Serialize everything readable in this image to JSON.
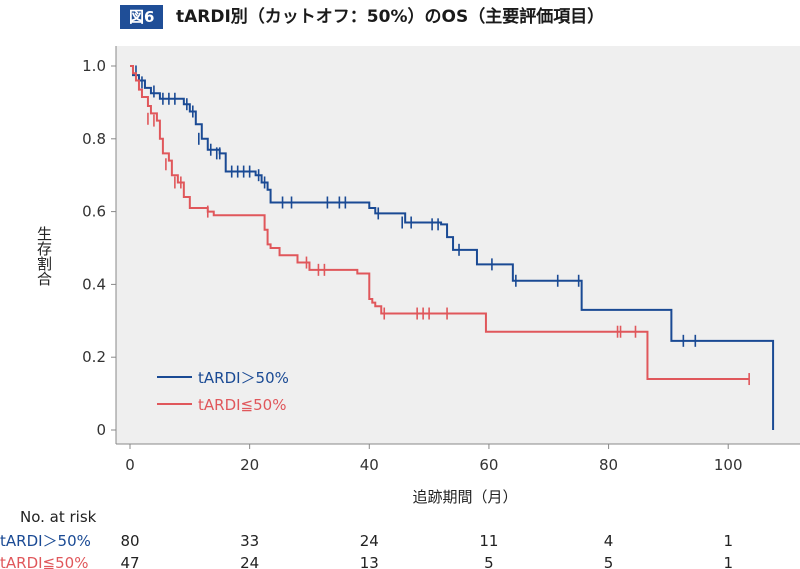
{
  "figure": {
    "badge": "図6",
    "title": "tARDI別（カットオフ：50%）のOS（主要評価項目）"
  },
  "colors": {
    "high": "#1a4a94",
    "low": "#e0575b",
    "plot_bg": "#efefef",
    "badge_bg": "#1f4e97"
  },
  "chart_data": {
    "type": "line",
    "subtype": "kaplan-meier-step",
    "xlabel": "追跡期間（月）",
    "ylabel": "生存割合",
    "xlim": [
      0,
      112
    ],
    "ylim": [
      0,
      1.0
    ],
    "x_ticks": [
      0,
      20,
      40,
      60,
      80,
      100
    ],
    "y_ticks": [
      0,
      0.2,
      0.4,
      0.6,
      0.8,
      1.0
    ],
    "y_tick_labels": [
      "0",
      "0.2",
      "0.4",
      "0.6",
      "0.8",
      "1.0"
    ],
    "grid": false,
    "legend_position": "lower-left",
    "series": [
      {
        "name": "tARDI＞50%",
        "color": "#1a4a94",
        "steps": [
          [
            0,
            1.0
          ],
          [
            0.5,
            0.975
          ],
          [
            1.5,
            0.96
          ],
          [
            2.5,
            0.94
          ],
          [
            3.5,
            0.925
          ],
          [
            5,
            0.91
          ],
          [
            8,
            0.91
          ],
          [
            9,
            0.895
          ],
          [
            10,
            0.875
          ],
          [
            11,
            0.84
          ],
          [
            12,
            0.8
          ],
          [
            13,
            0.77
          ],
          [
            15,
            0.76
          ],
          [
            16,
            0.71
          ],
          [
            21,
            0.7
          ],
          [
            22,
            0.68
          ],
          [
            23,
            0.66
          ],
          [
            23.5,
            0.625
          ],
          [
            40,
            0.61
          ],
          [
            41,
            0.595
          ],
          [
            46,
            0.57
          ],
          [
            52,
            0.565
          ],
          [
            53,
            0.53
          ],
          [
            54,
            0.495
          ],
          [
            58,
            0.455
          ],
          [
            64,
            0.41
          ],
          [
            75.5,
            0.33
          ],
          [
            90.5,
            0.245
          ],
          [
            107.5,
            0.245
          ],
          [
            107.5,
            0.0
          ]
        ],
        "censored": [
          [
            1,
            0.985
          ],
          [
            2,
            0.955
          ],
          [
            4,
            0.93
          ],
          [
            5.5,
            0.91
          ],
          [
            6.5,
            0.91
          ],
          [
            7.5,
            0.91
          ],
          [
            9.5,
            0.895
          ],
          [
            10.5,
            0.875
          ],
          [
            11.5,
            0.8
          ],
          [
            13.5,
            0.77
          ],
          [
            14.5,
            0.76
          ],
          [
            15,
            0.76
          ],
          [
            17,
            0.71
          ],
          [
            18,
            0.71
          ],
          [
            19,
            0.71
          ],
          [
            20,
            0.71
          ],
          [
            21.5,
            0.7
          ],
          [
            22.5,
            0.68
          ],
          [
            25.5,
            0.625
          ],
          [
            27,
            0.625
          ],
          [
            33,
            0.625
          ],
          [
            35,
            0.625
          ],
          [
            36,
            0.625
          ],
          [
            41.5,
            0.595
          ],
          [
            45.5,
            0.57
          ],
          [
            47,
            0.57
          ],
          [
            50.5,
            0.565
          ],
          [
            51.5,
            0.565
          ],
          [
            55,
            0.495
          ],
          [
            60.5,
            0.455
          ],
          [
            64.5,
            0.41
          ],
          [
            71.5,
            0.41
          ],
          [
            75,
            0.41
          ],
          [
            92.5,
            0.245
          ],
          [
            94.5,
            0.245
          ]
        ]
      },
      {
        "name": "tARDI≦50%",
        "color": "#e0575b",
        "steps": [
          [
            0,
            1.0
          ],
          [
            0.5,
            0.98
          ],
          [
            1,
            0.96
          ],
          [
            1.5,
            0.935
          ],
          [
            2,
            0.915
          ],
          [
            3,
            0.89
          ],
          [
            3.5,
            0.87
          ],
          [
            4.5,
            0.85
          ],
          [
            5,
            0.8
          ],
          [
            5.5,
            0.76
          ],
          [
            6.5,
            0.74
          ],
          [
            7,
            0.7
          ],
          [
            8,
            0.68
          ],
          [
            9,
            0.64
          ],
          [
            10,
            0.61
          ],
          [
            13,
            0.6
          ],
          [
            14,
            0.59
          ],
          [
            22.5,
            0.55
          ],
          [
            23,
            0.51
          ],
          [
            23.5,
            0.5
          ],
          [
            25,
            0.48
          ],
          [
            28,
            0.46
          ],
          [
            30,
            0.44
          ],
          [
            38,
            0.43
          ],
          [
            40,
            0.36
          ],
          [
            40.5,
            0.35
          ],
          [
            41,
            0.34
          ],
          [
            42,
            0.32
          ],
          [
            59.5,
            0.27
          ],
          [
            86.5,
            0.14
          ],
          [
            103.5,
            0.14
          ]
        ],
        "censored": [
          [
            3,
            0.855
          ],
          [
            4,
            0.85
          ],
          [
            6,
            0.73
          ],
          [
            7.5,
            0.68
          ],
          [
            8.5,
            0.68
          ],
          [
            13,
            0.6
          ],
          [
            29.5,
            0.46
          ],
          [
            31.5,
            0.44
          ],
          [
            32.5,
            0.44
          ],
          [
            42.5,
            0.32
          ],
          [
            48,
            0.32
          ],
          [
            49,
            0.32
          ],
          [
            50,
            0.32
          ],
          [
            53,
            0.32
          ],
          [
            81.5,
            0.27
          ],
          [
            82,
            0.27
          ],
          [
            84.5,
            0.27
          ],
          [
            103.5,
            0.14
          ]
        ]
      }
    ],
    "risk_table": {
      "header": "No. at risk",
      "times": [
        0,
        20,
        40,
        60,
        80,
        100
      ],
      "rows": [
        {
          "label": "tARDI＞50%",
          "color": "#1a4a94",
          "values": [
            "80",
            "33",
            "24",
            "11",
            "4",
            "1"
          ]
        },
        {
          "label": "tARDI≦50%",
          "color": "#e0575b",
          "values": [
            "47",
            "24",
            "13",
            "5",
            "5",
            "1"
          ]
        }
      ]
    }
  }
}
